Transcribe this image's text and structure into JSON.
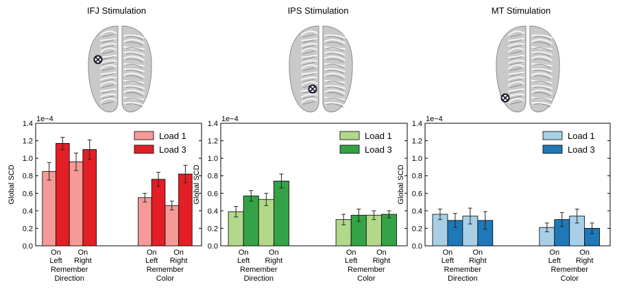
{
  "chart_data": [
    {
      "type": "bar",
      "title": "IFJ Stimulation",
      "ylabel": "Global SCD",
      "y_multiplier": "1e−4",
      "ylim": [
        0,
        1.4
      ],
      "yticks": [
        "0.0",
        "0.2",
        "0.4",
        "0.6",
        "0.8",
        "1.0",
        "1.2",
        "1.4"
      ],
      "x_subgroups": [
        "On Left",
        "On Right",
        "On Left",
        "On Right"
      ],
      "x_groups": [
        "Remember Direction",
        "Remember Color"
      ],
      "legend_position": "top-right",
      "stim_marker": "cross-circle-icon",
      "series": [
        {
          "name": "Load 1",
          "color": "#f59a96",
          "values": [
            0.85,
            0.96,
            0.55,
            0.46
          ],
          "errors": [
            0.1,
            0.1,
            0.05,
            0.05
          ]
        },
        {
          "name": "Load 3",
          "color": "#e41e26",
          "values": [
            1.17,
            1.1,
            0.76,
            0.82
          ],
          "errors": [
            0.07,
            0.11,
            0.08,
            0.1
          ]
        }
      ]
    },
    {
      "type": "bar",
      "title": "IPS Stimulation",
      "ylabel": "Global SCD",
      "y_multiplier": "1e−4",
      "ylim": [
        0,
        1.4
      ],
      "yticks": [
        "0.0",
        "0.2",
        "0.4",
        "0.6",
        "0.8",
        "1.0",
        "1.2",
        "1.4"
      ],
      "x_subgroups": [
        "On Left",
        "On Right",
        "On Left",
        "On Right"
      ],
      "x_groups": [
        "Remember Direction",
        "Remember Color"
      ],
      "legend_position": "top-right",
      "stim_marker": "cross-circle-icon",
      "series": [
        {
          "name": "Load 1",
          "color": "#b2d88a",
          "values": [
            0.39,
            0.53,
            0.3,
            0.35
          ],
          "errors": [
            0.06,
            0.07,
            0.06,
            0.05
          ]
        },
        {
          "name": "Load 3",
          "color": "#34a347",
          "values": [
            0.57,
            0.74,
            0.35,
            0.36
          ],
          "errors": [
            0.06,
            0.08,
            0.07,
            0.04
          ]
        }
      ]
    },
    {
      "type": "bar",
      "title": "MT Stimulation",
      "ylabel": "Global SCD",
      "y_multiplier": "1e−4",
      "ylim": [
        0,
        1.4
      ],
      "yticks": [
        "0.0",
        "0.2",
        "0.4",
        "0.6",
        "0.8",
        "1.0",
        "1.2",
        "1.4"
      ],
      "x_subgroups": [
        "On Left",
        "On Right",
        "On Left",
        "On Right"
      ],
      "x_groups": [
        "Remember Direction",
        "Remember Color"
      ],
      "legend_position": "top-right",
      "stim_marker": "cross-circle-icon",
      "series": [
        {
          "name": "Load 1",
          "color": "#a9cfe6",
          "values": [
            0.36,
            0.34,
            0.21,
            0.34
          ],
          "errors": [
            0.06,
            0.09,
            0.05,
            0.08
          ]
        },
        {
          "name": "Load 3",
          "color": "#1f78b8",
          "values": [
            0.29,
            0.29,
            0.3,
            0.2
          ],
          "errors": [
            0.08,
            0.1,
            0.08,
            0.06
          ]
        }
      ]
    }
  ]
}
